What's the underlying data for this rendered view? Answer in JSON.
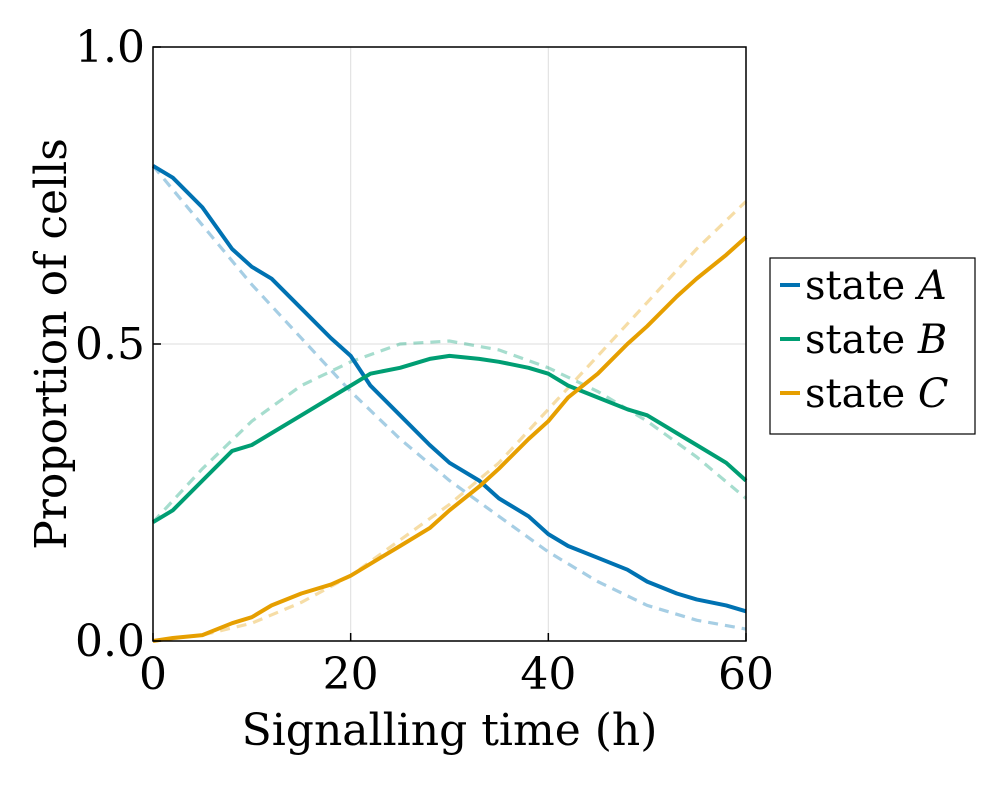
{
  "chart_data": {
    "type": "line",
    "xlabel": "Signalling time (h)",
    "ylabel": "Proportion of cells",
    "xlim": [
      0,
      60
    ],
    "ylim": [
      0,
      1
    ],
    "xticks": [
      "0",
      "20",
      "40",
      "60"
    ],
    "yticks": [
      "0.0",
      "0.5",
      "1.0"
    ],
    "xtick_values": [
      0,
      20,
      40,
      60
    ],
    "ytick_values": [
      0,
      0.5,
      1.0
    ],
    "grid": true,
    "legend_position": "outside-right",
    "series": [
      {
        "name": "state A",
        "label_text": "state ",
        "label_var": "A",
        "color": "#0072b2",
        "simulated": {
          "x": [
            0,
            2,
            5,
            8,
            10,
            12,
            15,
            18,
            20,
            22,
            25,
            28,
            30,
            33,
            35,
            38,
            40,
            42,
            45,
            48,
            50,
            53,
            55,
            58,
            60
          ],
          "y": [
            0.8,
            0.78,
            0.73,
            0.66,
            0.63,
            0.61,
            0.56,
            0.51,
            0.48,
            0.43,
            0.38,
            0.33,
            0.3,
            0.27,
            0.24,
            0.21,
            0.18,
            0.16,
            0.14,
            0.12,
            0.1,
            0.08,
            0.07,
            0.06,
            0.05
          ]
        },
        "model": {
          "x": [
            0,
            5,
            10,
            15,
            20,
            25,
            30,
            35,
            40,
            45,
            50,
            55,
            60
          ],
          "y": [
            0.8,
            0.7,
            0.6,
            0.51,
            0.42,
            0.34,
            0.27,
            0.21,
            0.15,
            0.1,
            0.06,
            0.035,
            0.02
          ]
        }
      },
      {
        "name": "state B",
        "label_text": "state ",
        "label_var": "B",
        "color": "#009e73",
        "simulated": {
          "x": [
            0,
            2,
            5,
            8,
            10,
            12,
            15,
            18,
            20,
            22,
            25,
            28,
            30,
            33,
            35,
            38,
            40,
            42,
            45,
            48,
            50,
            53,
            55,
            58,
            60
          ],
          "y": [
            0.2,
            0.22,
            0.27,
            0.32,
            0.33,
            0.35,
            0.38,
            0.41,
            0.43,
            0.45,
            0.46,
            0.475,
            0.48,
            0.475,
            0.47,
            0.46,
            0.45,
            0.43,
            0.41,
            0.39,
            0.38,
            0.35,
            0.33,
            0.3,
            0.27
          ]
        },
        "model": {
          "x": [
            0,
            5,
            10,
            15,
            20,
            25,
            30,
            35,
            40,
            45,
            50,
            55,
            60
          ],
          "y": [
            0.2,
            0.29,
            0.37,
            0.43,
            0.47,
            0.5,
            0.505,
            0.49,
            0.46,
            0.42,
            0.37,
            0.31,
            0.24
          ]
        }
      },
      {
        "name": "state C",
        "label_text": "state ",
        "label_var": "C",
        "color": "#e69f00",
        "simulated": {
          "x": [
            0,
            2,
            5,
            8,
            10,
            12,
            15,
            18,
            20,
            22,
            25,
            28,
            30,
            33,
            35,
            38,
            40,
            42,
            45,
            48,
            50,
            53,
            55,
            58,
            60
          ],
          "y": [
            0.0,
            0.005,
            0.01,
            0.03,
            0.04,
            0.06,
            0.08,
            0.095,
            0.11,
            0.13,
            0.16,
            0.19,
            0.22,
            0.26,
            0.29,
            0.34,
            0.37,
            0.41,
            0.45,
            0.5,
            0.53,
            0.58,
            0.61,
            0.65,
            0.68
          ]
        },
        "model": {
          "x": [
            0,
            5,
            10,
            15,
            20,
            25,
            30,
            35,
            40,
            45,
            50,
            55,
            60
          ],
          "y": [
            0.0,
            0.01,
            0.03,
            0.065,
            0.11,
            0.17,
            0.23,
            0.3,
            0.39,
            0.48,
            0.57,
            0.66,
            0.74
          ]
        }
      }
    ]
  }
}
